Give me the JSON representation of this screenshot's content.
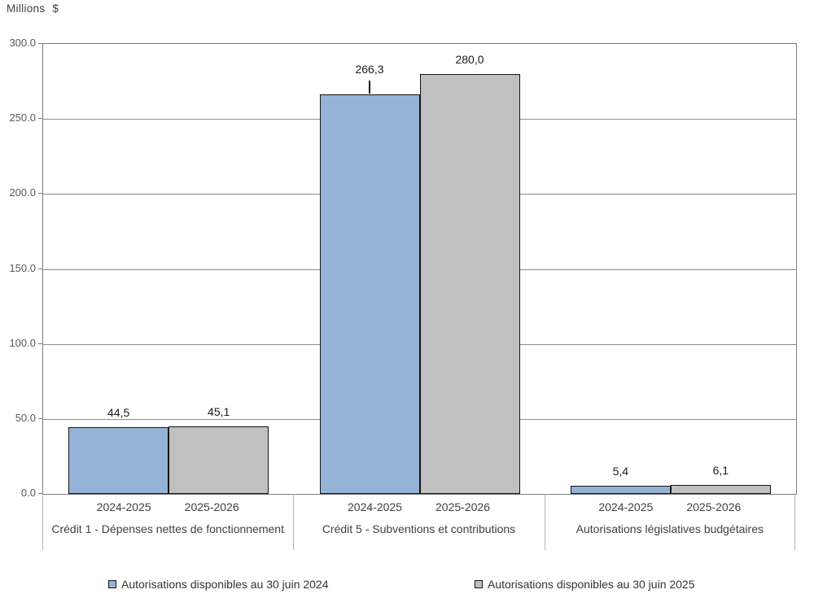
{
  "unit_label": {
    "prefix": "Millions",
    "symbol": "$"
  },
  "chart_data": {
    "type": "bar",
    "title": "",
    "unit": "Millions $",
    "grid": true,
    "legend_position": "bottom",
    "y_axis": {
      "min": 0,
      "max": 300,
      "tick_step": 50,
      "tick_labels": [
        "300.0",
        "250.0",
        "200.0",
        "150.0",
        "100.0",
        "50.0",
        "0.0"
      ]
    },
    "x_sublabels": [
      "2024-2025",
      "2025-2026"
    ],
    "groups": [
      {
        "label": "Crédit 1 - Dépenses nettes de fonctionnement"
      },
      {
        "label": "Crédit 5 - Subventions et contributions"
      },
      {
        "label": "Autorisations législatives budgétaires"
      }
    ],
    "series": [
      {
        "name": "Autorisations disponibles au 30 juin 2024",
        "color": "#95B3D7",
        "points": [
          {
            "value": 44.5,
            "label": "44,5",
            "leader": false
          },
          {
            "value": 266.3,
            "label": "266,3",
            "leader": true
          },
          {
            "value": 5.4,
            "label": "5,4",
            "leader": false
          }
        ]
      },
      {
        "name": "Autorisations disponibles au 30 juin 2025",
        "color": "#C0C0C0",
        "points": [
          {
            "value": 45.1,
            "label": "45,1",
            "leader": false
          },
          {
            "value": 280.0,
            "label": "280,0",
            "leader": false
          },
          {
            "value": 6.1,
            "label": "6,1",
            "leader": false
          }
        ]
      }
    ]
  }
}
